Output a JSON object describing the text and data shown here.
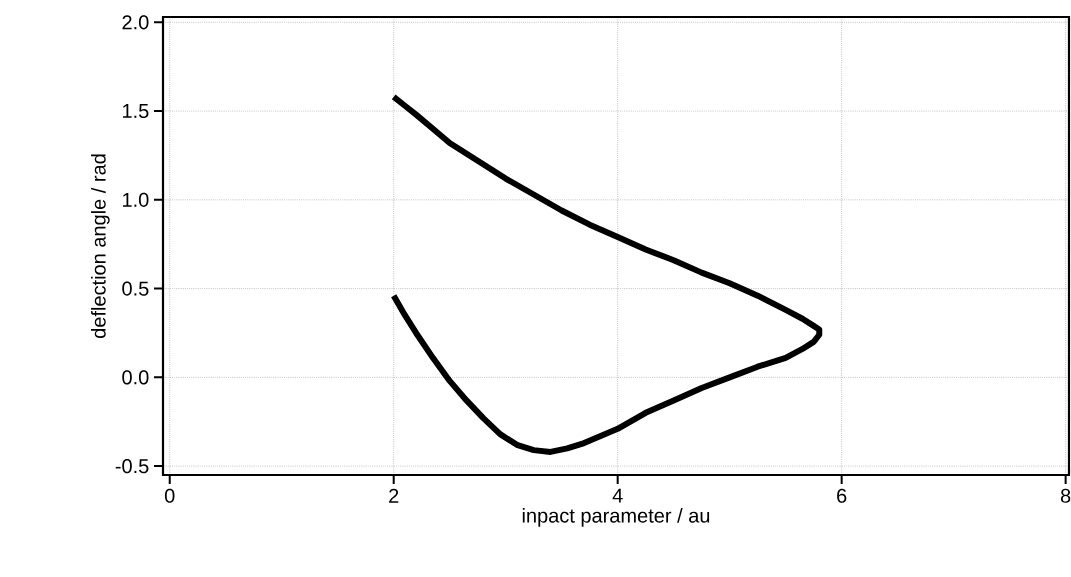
{
  "chart_data": {
    "type": "line",
    "xlabel": "inpact parameter / au",
    "ylabel": "deflection angle / rad",
    "x": [
      2,
      2.1,
      2.2,
      2.35,
      2.5,
      2.75,
      3,
      3.25,
      3.5,
      3.75,
      4,
      4.25,
      4.5,
      4.75,
      5,
      5.25,
      5.5,
      5.65,
      5.75,
      5.8,
      5.8,
      5.75,
      5.65,
      5.5,
      5.25,
      5,
      4.75,
      4.5,
      4.25,
      4,
      3.85,
      3.7,
      3.55,
      3.4,
      3.25,
      3.1,
      2.95,
      2.8,
      2.65,
      2.5,
      2.35,
      2.2,
      2.1,
      2
    ],
    "values": [
      1.58,
      1.53,
      1.48,
      1.4,
      1.32,
      1.22,
      1.12,
      1.03,
      0.94,
      0.86,
      0.79,
      0.72,
      0.66,
      0.59,
      0.53,
      0.46,
      0.38,
      0.33,
      0.29,
      0.27,
      0.24,
      0.2,
      0.16,
      0.11,
      0.06,
      0.0,
      -0.06,
      -0.13,
      -0.2,
      -0.29,
      -0.33,
      -0.37,
      -0.4,
      -0.42,
      -0.41,
      -0.38,
      -0.32,
      -0.23,
      -0.13,
      -0.02,
      0.11,
      0.25,
      0.35,
      0.46
    ],
    "color": "#000000",
    "grid": true,
    "xlim": [
      -0.06,
      8.03
    ],
    "ylim": [
      -0.55,
      2.03
    ],
    "xticks": [
      0,
      2,
      4,
      6,
      8
    ],
    "yticks": [
      {
        "value": -0.5,
        "label": "-0.5"
      },
      {
        "value": 0,
        "label": "0.0"
      },
      {
        "value": 0.5,
        "label": "0.5"
      },
      {
        "value": 1,
        "label": "1.0"
      },
      {
        "value": 1.5,
        "label": "1.5"
      },
      {
        "value": 2,
        "label": "2.0"
      }
    ]
  }
}
